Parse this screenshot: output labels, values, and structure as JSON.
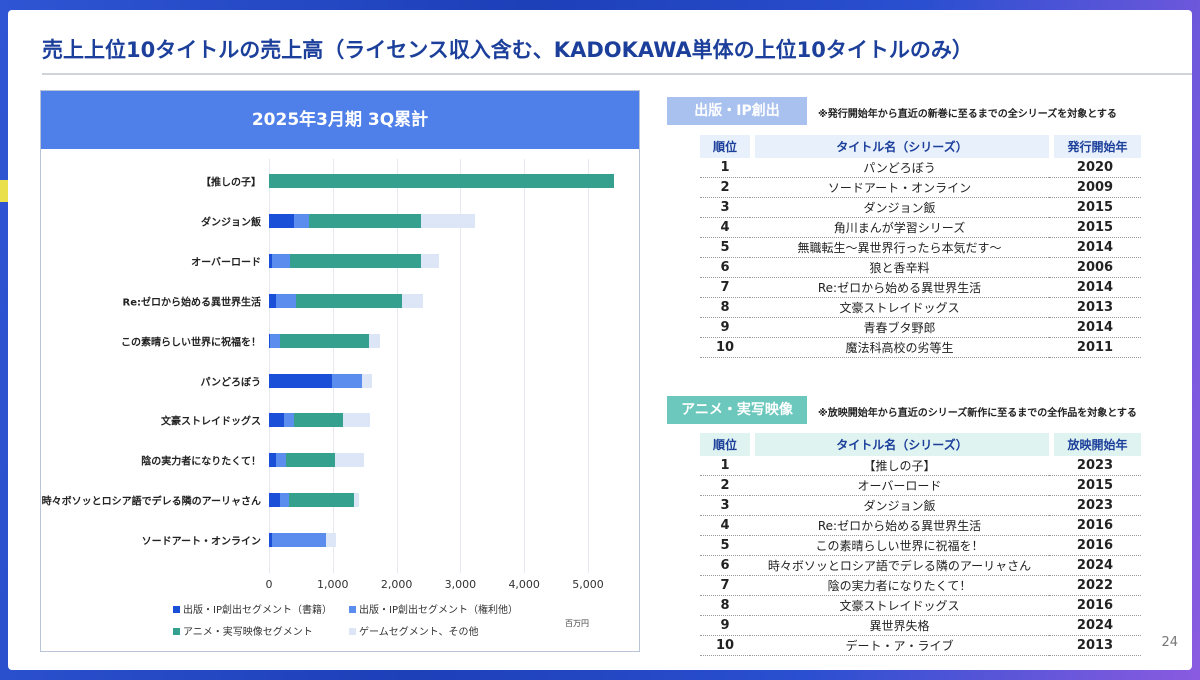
{
  "title": "売上上位10タイトルの売上高（ライセンス収入含む、KADOKAWA単体の上位10タイトルのみ）",
  "page_number": "24",
  "chart_data": {
    "type": "bar",
    "orientation": "horizontal",
    "stacked": true,
    "title": "2025年3月期 3Q累計",
    "unit": "百万円",
    "categories": [
      "【推しの子】",
      "ダンジョン飯",
      "オーバーロード",
      "Re:ゼロから始める異世界生活",
      "この素晴らしい世界に祝福を！",
      "パンどろぼう",
      "文豪ストレイドッグス",
      "陰の実力者になりたくて！",
      "時々ボソッとロシア語でデレる隣のアーリャさん",
      "ソードアート・オンライン"
    ],
    "xlim": [
      0,
      5400
    ],
    "xticks": [
      "0",
      "1,000",
      "2,000",
      "3,000",
      "4,000",
      "5,000"
    ],
    "xtick_values": [
      0,
      1000,
      2000,
      3000,
      4000,
      5000
    ],
    "grid": true,
    "legend": "bottom",
    "series": [
      {
        "name": "出版・IP創出セグメント（書籍）",
        "color": "#1a4fd8",
        "values": [
          0,
          385,
          54,
          102,
          20,
          988,
          241,
          102,
          169,
          54
        ]
      },
      {
        "name": "出版・IP創出セグメント（権利他）",
        "color": "#5b8def",
        "values": [
          0,
          248,
          277,
          326,
          149,
          464,
          157,
          157,
          150,
          844
        ]
      },
      {
        "name": "アニメ・実写映像セグメント",
        "color": "#36a08f",
        "values": [
          5400,
          1753,
          2055,
          1662,
          1403,
          0,
          759,
          771,
          1012,
          0
        ]
      },
      {
        "name": "ゲームセグメント、その他",
        "color": "#dce6f7",
        "values": [
          0,
          843,
          283,
          326,
          175,
          168,
          427,
          464,
          73,
          150
        ]
      }
    ]
  },
  "publishing": {
    "label": "出版・IP創出",
    "color": "#a9c1ef",
    "note": "※発行開始年から直近の新巻に至るまでの全シリーズを対象とする",
    "headers": [
      "順位",
      "タイトル名（シリーズ）",
      "発行開始年"
    ],
    "rows": [
      [
        "1",
        "パンどろぼう",
        "2020"
      ],
      [
        "2",
        "ソードアート・オンライン",
        "2009"
      ],
      [
        "3",
        "ダンジョン飯",
        "2015"
      ],
      [
        "4",
        "角川まんが学習シリーズ",
        "2015"
      ],
      [
        "5",
        "無職転生～異世界行ったら本気だす～",
        "2014"
      ],
      [
        "6",
        "狼と香辛料",
        "2006"
      ],
      [
        "7",
        "Re:ゼロから始める異世界生活",
        "2014"
      ],
      [
        "8",
        "文豪ストレイドッグス",
        "2013"
      ],
      [
        "9",
        "青春ブタ野郎",
        "2014"
      ],
      [
        "10",
        "魔法科高校の劣等生",
        "2011"
      ]
    ]
  },
  "anime": {
    "label": "アニメ・実写映像",
    "color": "#6cc7bd",
    "note": "※放映開始年から直近のシリーズ新作に至るまでの全作品を対象とする",
    "headers": [
      "順位",
      "タイトル名（シリーズ）",
      "放映開始年"
    ],
    "rows": [
      [
        "1",
        "【推しの子】",
        "2023"
      ],
      [
        "2",
        "オーバーロード",
        "2015"
      ],
      [
        "3",
        "ダンジョン飯",
        "2023"
      ],
      [
        "4",
        "Re:ゼロから始める異世界生活",
        "2016"
      ],
      [
        "5",
        "この素晴らしい世界に祝福を！",
        "2016"
      ],
      [
        "6",
        "時々ボソッとロシア語でデレる隣のアーリャさん",
        "2024"
      ],
      [
        "7",
        "陰の実力者になりたくて！",
        "2022"
      ],
      [
        "8",
        "文豪ストレイドッグス",
        "2016"
      ],
      [
        "9",
        "異世界失格",
        "2024"
      ],
      [
        "10",
        "デート・ア・ライブ",
        "2013"
      ]
    ]
  }
}
